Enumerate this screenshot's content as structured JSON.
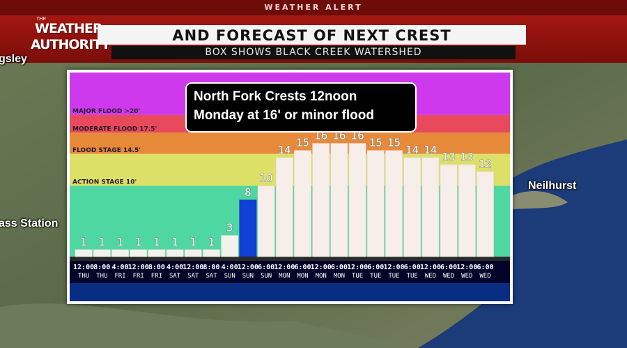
{
  "header": {
    "alert_label": "WEATHER ALERT",
    "logo_small": "THE",
    "logo_line1": "WEATHER",
    "logo_line2": "AUTHORITY",
    "headline": "AND FORECAST OF NEXT CREST",
    "subhead": "BOX SHOWS BLACK CREEK WATERSHED"
  },
  "map_labels": {
    "top_left": "gsley",
    "left": "ass Station",
    "right": "Neilhurst"
  },
  "callout": {
    "line1": "North Fork Crests 12noon",
    "line2": "Monday at 16' or minor flood"
  },
  "colors": {
    "major": "#cf39ee",
    "moderate": "#e84a5c",
    "flood": "#e68a3a",
    "action": "#dde067",
    "normal": "#4fd7a1",
    "current_bar": "#0f3fd4",
    "forecast_bar": "#f7eeea",
    "header_red": "#b11a14"
  },
  "chart_data": {
    "type": "bar",
    "title": "",
    "ylim": [
      0,
      26
    ],
    "bands": [
      {
        "label": "MAJOR FLOOD >20'",
        "from": 20,
        "to": 26
      },
      {
        "label": "MODERATE FLOOD 17.5'",
        "from": 17.5,
        "to": 20
      },
      {
        "label": "FLOOD STAGE 14.5'",
        "from": 14.5,
        "to": 17.5
      },
      {
        "label": "ACTION STAGE 10'",
        "from": 10,
        "to": 14.5
      },
      {
        "label": "",
        "from": 0,
        "to": 10
      }
    ],
    "categories": [
      {
        "time": "12:00",
        "day": "THU"
      },
      {
        "time": "8:00",
        "day": "THU"
      },
      {
        "time": "4:00",
        "day": "FRI"
      },
      {
        "time": "12:00",
        "day": "FRI"
      },
      {
        "time": "8:00",
        "day": "FRI"
      },
      {
        "time": "4:00",
        "day": "SAT"
      },
      {
        "time": "12:00",
        "day": "SAT"
      },
      {
        "time": "8:00",
        "day": "SAT"
      },
      {
        "time": "4:00",
        "day": "SUN"
      },
      {
        "time": "12:00",
        "day": "SUN"
      },
      {
        "time": "6:00",
        "day": "SUN"
      },
      {
        "time": "12:00",
        "day": "MON"
      },
      {
        "time": "6:00",
        "day": "MON"
      },
      {
        "time": "12:00",
        "day": "MON"
      },
      {
        "time": "6:00",
        "day": "MON"
      },
      {
        "time": "12:00",
        "day": "TUE"
      },
      {
        "time": "6:00",
        "day": "TUE"
      },
      {
        "time": "12:00",
        "day": "TUE"
      },
      {
        "time": "6:00",
        "day": "TUE"
      },
      {
        "time": "12:00",
        "day": "WED"
      },
      {
        "time": "6:00",
        "day": "WED"
      },
      {
        "time": "12:00",
        "day": "WED"
      },
      {
        "time": "6:00",
        "day": "WED"
      }
    ],
    "values": [
      1,
      1,
      1,
      1,
      1,
      1,
      1,
      1,
      3,
      8,
      10,
      14,
      15,
      16,
      16,
      16,
      15,
      15,
      14,
      14,
      13,
      13,
      12
    ],
    "current_index": 9
  }
}
